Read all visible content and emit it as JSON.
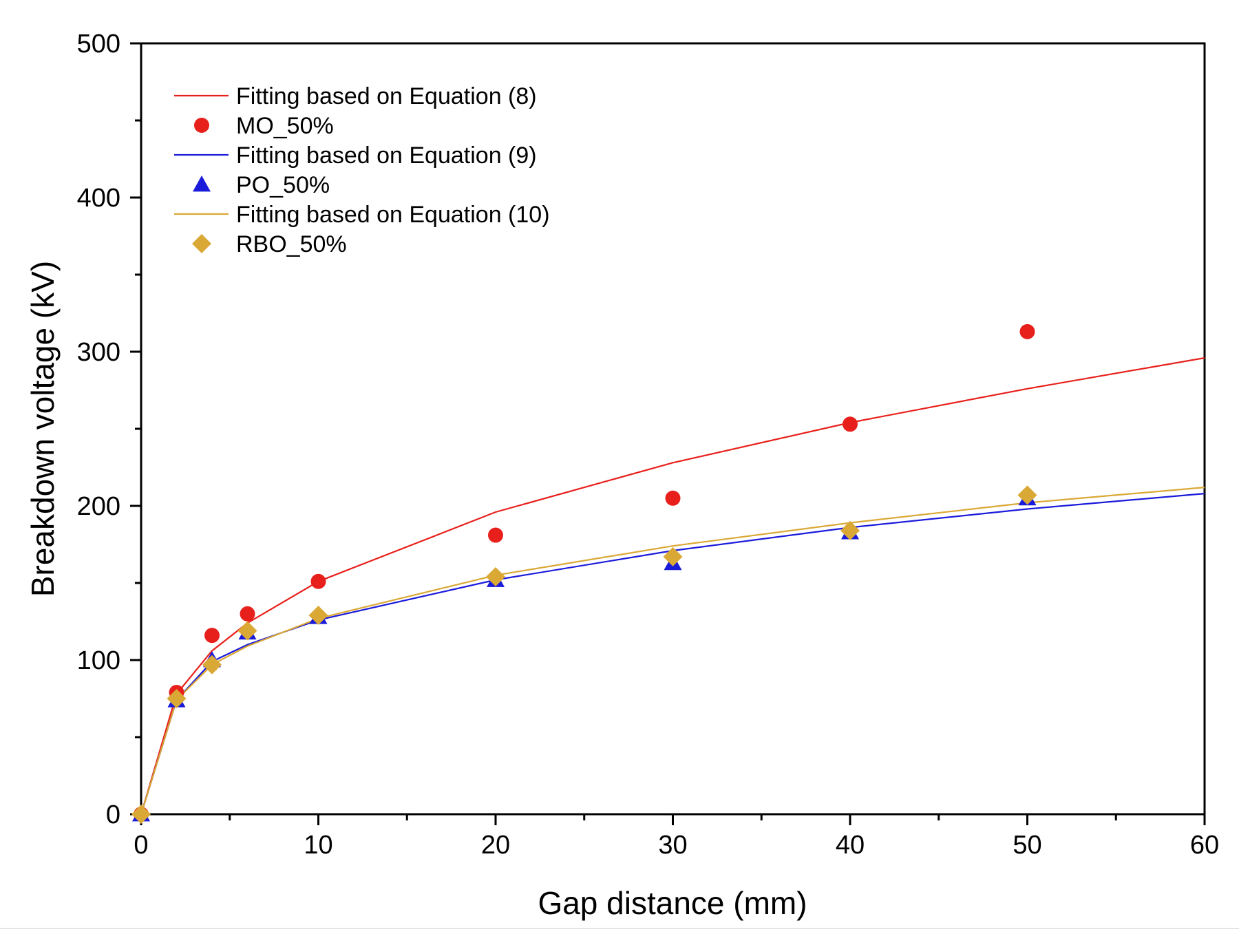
{
  "chart_data": {
    "type": "scatter",
    "title": "",
    "xlabel": "Gap distance (mm)",
    "ylabel": "Breakdown voltage (kV)",
    "xlim": [
      0,
      60
    ],
    "ylim": [
      0,
      500
    ],
    "xticks": [
      "0",
      "10",
      "20",
      "30",
      "40",
      "50",
      "60"
    ],
    "yticks": [
      "0",
      "100",
      "200",
      "300",
      "400",
      "500"
    ],
    "x_minor_step": 5,
    "y_minor_step": 50,
    "grid": false,
    "legend_position": "top-left",
    "series": [
      {
        "name": "Fitting based on Equation (8)",
        "kind": "line",
        "color": "#e8201c",
        "x": [
          0,
          2,
          4,
          6,
          10,
          20,
          30,
          40,
          50,
          60
        ],
        "y": [
          0,
          78,
          106,
          124,
          151,
          196,
          228,
          254,
          276,
          296
        ]
      },
      {
        "name": "MO_50%",
        "kind": "marker",
        "marker": "circle",
        "color": "#e8201c",
        "x": [
          0,
          2,
          4,
          6,
          10,
          20,
          30,
          40,
          50
        ],
        "y": [
          0,
          79,
          116,
          130,
          151,
          181,
          205,
          253,
          313
        ]
      },
      {
        "name": "Fitting based on Equation (9)",
        "kind": "line",
        "color": "#1a1adb",
        "x": [
          0,
          2,
          4,
          6,
          10,
          20,
          30,
          40,
          50,
          60
        ],
        "y": [
          0,
          74,
          99,
          110,
          126,
          152,
          171,
          186,
          198,
          208
        ]
      },
      {
        "name": "PO_50%",
        "kind": "marker",
        "marker": "triangle",
        "color": "#1a1adb",
        "x": [
          0,
          2,
          4,
          6,
          10,
          20,
          30,
          40,
          50
        ],
        "y": [
          0,
          74,
          100,
          118,
          128,
          152,
          163,
          183,
          205
        ]
      },
      {
        "name": "Fitting based on Equation (10)",
        "kind": "line",
        "color": "#daa835",
        "x": [
          0,
          2,
          4,
          6,
          10,
          20,
          30,
          40,
          50,
          60
        ],
        "y": [
          0,
          74,
          97,
          109,
          127,
          155,
          174,
          189,
          202,
          212
        ]
      },
      {
        "name": "RBO_50%",
        "kind": "marker",
        "marker": "diamond",
        "color": "#daa835",
        "x": [
          0,
          2,
          4,
          6,
          10,
          20,
          30,
          40,
          50
        ],
        "y": [
          0,
          75,
          97,
          119,
          129,
          154,
          167,
          184,
          207
        ]
      }
    ]
  }
}
